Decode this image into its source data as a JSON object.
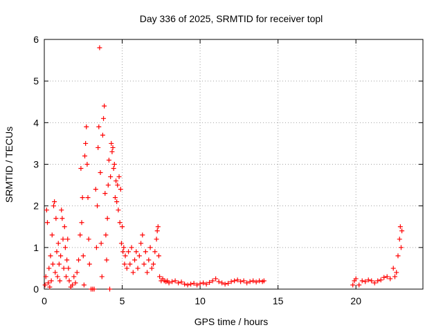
{
  "chart_data": {
    "type": "scatter",
    "title": "Day 336 of 2025, SRMTID for receiver topl",
    "xlabel": "GPS time / hours",
    "ylabel": "SRMTID / TECUs",
    "xlim": [
      0,
      24.3
    ],
    "ylim": [
      0,
      6
    ],
    "xticks": [
      0,
      5,
      10,
      15,
      20
    ],
    "yticks": [
      0,
      1,
      2,
      3,
      4,
      5,
      6
    ],
    "grid": true,
    "marker": "+",
    "series": [
      {
        "name": "SRMTID",
        "color": "#ff0000",
        "points": [
          [
            0.05,
            0.1
          ],
          [
            0.1,
            0.3
          ],
          [
            0.15,
            1.9
          ],
          [
            0.2,
            1.6
          ],
          [
            0.25,
            0.15
          ],
          [
            0.3,
            0.5
          ],
          [
            0.35,
            0.05
          ],
          [
            0.4,
            0.8
          ],
          [
            0.45,
            0.2
          ],
          [
            0.5,
            1.3
          ],
          [
            0.55,
            0.6
          ],
          [
            0.6,
            2.0
          ],
          [
            0.65,
            2.1
          ],
          [
            0.7,
            0.4
          ],
          [
            0.75,
            1.7
          ],
          [
            0.8,
            0.9
          ],
          [
            0.85,
            0.3
          ],
          [
            0.9,
            1.1
          ],
          [
            0.95,
            0.6
          ],
          [
            1.0,
            0.2
          ],
          [
            1.05,
            0.8
          ],
          [
            1.1,
            1.9
          ],
          [
            1.15,
            1.7
          ],
          [
            1.2,
            1.2
          ],
          [
            1.25,
            0.5
          ],
          [
            1.3,
            1.5
          ],
          [
            1.35,
            1.0
          ],
          [
            1.4,
            0.3
          ],
          [
            1.45,
            0.7
          ],
          [
            1.5,
            1.2
          ],
          [
            1.55,
            0.5
          ],
          [
            1.6,
            0.2
          ],
          [
            1.7,
            0.05
          ],
          [
            1.8,
            0.1
          ],
          [
            1.9,
            0.3
          ],
          [
            2.0,
            0.15
          ],
          [
            2.1,
            0.4
          ],
          [
            2.2,
            0.7
          ],
          [
            2.3,
            1.3
          ],
          [
            2.35,
            2.9
          ],
          [
            2.4,
            1.6
          ],
          [
            2.45,
            2.2
          ],
          [
            2.5,
            0.8
          ],
          [
            2.55,
            0.1
          ],
          [
            2.6,
            3.2
          ],
          [
            2.65,
            3.5
          ],
          [
            2.7,
            3.9
          ],
          [
            2.75,
            3.0
          ],
          [
            2.8,
            2.2
          ],
          [
            2.85,
            1.2
          ],
          [
            2.9,
            0.6
          ],
          [
            3.0,
            0.0
          ],
          [
            3.1,
            0.0
          ],
          [
            3.2,
            0.0
          ],
          [
            3.3,
            2.4
          ],
          [
            3.35,
            1.0
          ],
          [
            3.4,
            2.0
          ],
          [
            3.45,
            3.4
          ],
          [
            3.5,
            3.9
          ],
          [
            3.55,
            5.8
          ],
          [
            3.6,
            2.8
          ],
          [
            3.65,
            1.1
          ],
          [
            3.7,
            0.3
          ],
          [
            3.75,
            3.7
          ],
          [
            3.8,
            4.1
          ],
          [
            3.85,
            4.4
          ],
          [
            3.9,
            2.3
          ],
          [
            3.95,
            1.3
          ],
          [
            4.0,
            0.7
          ],
          [
            4.05,
            1.7
          ],
          [
            4.1,
            2.5
          ],
          [
            4.15,
            3.1
          ],
          [
            4.2,
            0.0
          ],
          [
            4.25,
            2.7
          ],
          [
            4.3,
            3.5
          ],
          [
            4.35,
            3.3
          ],
          [
            4.4,
            3.4
          ],
          [
            4.45,
            2.9
          ],
          [
            4.5,
            3.0
          ],
          [
            4.55,
            2.2
          ],
          [
            4.6,
            2.6
          ],
          [
            4.65,
            2.1
          ],
          [
            4.7,
            2.5
          ],
          [
            4.75,
            1.9
          ],
          [
            4.8,
            2.7
          ],
          [
            4.85,
            1.6
          ],
          [
            4.9,
            2.4
          ],
          [
            4.95,
            1.1
          ],
          [
            5.0,
            1.5
          ],
          [
            5.05,
            0.9
          ],
          [
            5.1,
            1.0
          ],
          [
            5.15,
            0.6
          ],
          [
            5.2,
            0.8
          ],
          [
            5.3,
            0.5
          ],
          [
            5.4,
            0.9
          ],
          [
            5.5,
            0.6
          ],
          [
            5.6,
            1.0
          ],
          [
            5.7,
            0.4
          ],
          [
            5.8,
            0.7
          ],
          [
            5.9,
            0.9
          ],
          [
            6.0,
            0.5
          ],
          [
            6.1,
            0.8
          ],
          [
            6.2,
            1.1
          ],
          [
            6.3,
            1.3
          ],
          [
            6.4,
            0.6
          ],
          [
            6.5,
            0.9
          ],
          [
            6.6,
            0.4
          ],
          [
            6.7,
            0.7
          ],
          [
            6.8,
            1.0
          ],
          [
            6.9,
            0.5
          ],
          [
            7.0,
            0.6
          ],
          [
            7.1,
            0.9
          ],
          [
            7.2,
            1.2
          ],
          [
            7.25,
            1.4
          ],
          [
            7.3,
            1.5
          ],
          [
            7.35,
            0.8
          ],
          [
            7.4,
            0.3
          ],
          [
            7.5,
            0.2
          ],
          [
            7.6,
            0.25
          ],
          [
            7.7,
            0.2
          ],
          [
            7.8,
            0.18
          ],
          [
            7.9,
            0.2
          ],
          [
            8.0,
            0.15
          ],
          [
            8.2,
            0.18
          ],
          [
            8.4,
            0.2
          ],
          [
            8.6,
            0.15
          ],
          [
            8.8,
            0.17
          ],
          [
            9.0,
            0.12
          ],
          [
            9.2,
            0.1
          ],
          [
            9.4,
            0.12
          ],
          [
            9.6,
            0.14
          ],
          [
            9.8,
            0.1
          ],
          [
            10.0,
            0.13
          ],
          [
            10.2,
            0.15
          ],
          [
            10.4,
            0.12
          ],
          [
            10.6,
            0.16
          ],
          [
            10.8,
            0.2
          ],
          [
            11.0,
            0.25
          ],
          [
            11.2,
            0.18
          ],
          [
            11.4,
            0.15
          ],
          [
            11.6,
            0.12
          ],
          [
            11.8,
            0.14
          ],
          [
            12.0,
            0.18
          ],
          [
            12.2,
            0.2
          ],
          [
            12.4,
            0.22
          ],
          [
            12.6,
            0.18
          ],
          [
            12.8,
            0.2
          ],
          [
            13.0,
            0.15
          ],
          [
            13.2,
            0.18
          ],
          [
            13.4,
            0.2
          ],
          [
            13.6,
            0.17
          ],
          [
            13.8,
            0.2
          ],
          [
            14.0,
            0.18
          ],
          [
            14.1,
            0.2
          ],
          [
            19.8,
            0.1
          ],
          [
            19.9,
            0.2
          ],
          [
            20.0,
            0.25
          ],
          [
            20.2,
            0.1
          ],
          [
            20.4,
            0.2
          ],
          [
            20.6,
            0.18
          ],
          [
            20.8,
            0.22
          ],
          [
            21.0,
            0.2
          ],
          [
            21.2,
            0.15
          ],
          [
            21.4,
            0.2
          ],
          [
            21.6,
            0.22
          ],
          [
            21.8,
            0.28
          ],
          [
            22.0,
            0.3
          ],
          [
            22.2,
            0.25
          ],
          [
            22.4,
            0.5
          ],
          [
            22.5,
            0.3
          ],
          [
            22.6,
            0.4
          ],
          [
            22.7,
            0.8
          ],
          [
            22.8,
            1.2
          ],
          [
            22.85,
            1.5
          ],
          [
            22.9,
            1.0
          ],
          [
            22.95,
            1.4
          ]
        ]
      }
    ]
  }
}
